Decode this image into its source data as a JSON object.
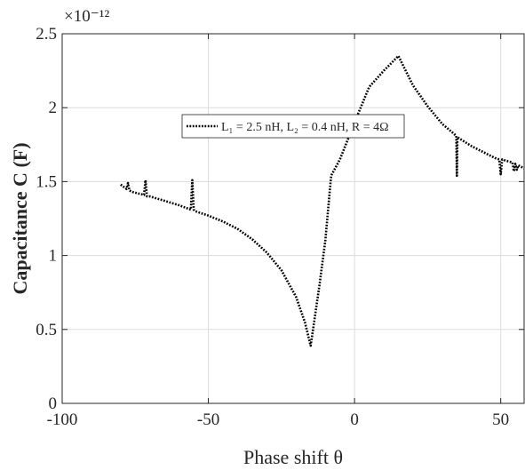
{
  "chart_data": {
    "type": "line",
    "title": "",
    "xlabel": "Phase shift θ",
    "ylabel": "Capacitance C (F)",
    "y_exponent_label": "×10⁻¹²",
    "xlim": [
      -100,
      58
    ],
    "ylim": [
      0,
      2.5
    ],
    "x_ticks": [
      -100,
      -50,
      0,
      50
    ],
    "x_tick_labels": [
      "-100",
      "-50",
      "0",
      "50"
    ],
    "y_ticks": [
      0,
      0.5,
      1,
      1.5,
      2,
      2.5
    ],
    "y_tick_labels": [
      "0",
      "0.5",
      "1",
      "1.5",
      "2",
      "2.5"
    ],
    "grid": true,
    "legend_position": "top-center",
    "series": [
      {
        "name": "L₁ = 2.5 nH, L₂ = 0.4 nH, R = 4Ω",
        "color": "#000000",
        "line_style": "dotted",
        "x": [
          -80,
          -78,
          -77.5,
          -77,
          -76,
          -74,
          -72,
          -71.5,
          -71,
          -70,
          -65,
          -60,
          -56,
          -55.5,
          -55,
          -54.5,
          -50,
          -45,
          -40,
          -35,
          -30,
          -25,
          -20,
          -17,
          -15,
          -12,
          -10,
          -8,
          -5,
          0,
          5,
          10,
          15,
          20,
          25,
          30,
          33,
          34.8,
          35,
          35.2,
          40,
          45,
          48,
          49.5,
          50,
          50.5,
          52,
          54,
          54.5,
          55,
          55.5,
          56,
          58
        ],
        "y": [
          1.48,
          1.45,
          1.49,
          1.44,
          1.43,
          1.42,
          1.41,
          1.51,
          1.4,
          1.4,
          1.37,
          1.34,
          1.31,
          1.51,
          1.31,
          1.3,
          1.27,
          1.23,
          1.18,
          1.11,
          1.02,
          0.9,
          0.72,
          0.55,
          0.39,
          0.8,
          1.1,
          1.54,
          1.65,
          1.9,
          2.14,
          2.25,
          2.35,
          2.15,
          2.01,
          1.89,
          1.84,
          1.81,
          1.54,
          1.8,
          1.74,
          1.69,
          1.66,
          1.65,
          1.55,
          1.65,
          1.64,
          1.63,
          1.57,
          1.62,
          1.58,
          1.61,
          1.59
        ]
      }
    ]
  }
}
